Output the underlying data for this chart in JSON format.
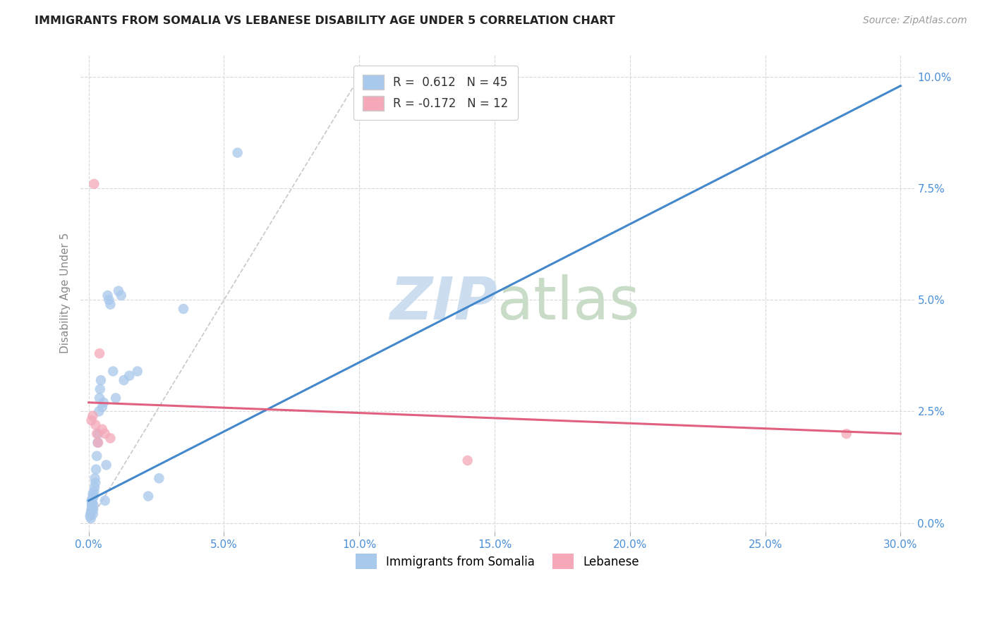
{
  "title": "IMMIGRANTS FROM SOMALIA VS LEBANESE DISABILITY AGE UNDER 5 CORRELATION CHART",
  "source": "Source: ZipAtlas.com",
  "xlabel_vals": [
    0.0,
    5.0,
    10.0,
    15.0,
    20.0,
    25.0,
    30.0
  ],
  "ylabel_vals": [
    0.0,
    2.5,
    5.0,
    7.5,
    10.0
  ],
  "ylabel": "Disability Age Under 5",
  "xlim": [
    -0.3,
    30.5
  ],
  "ylim": [
    -0.2,
    10.5
  ],
  "somalia_R": 0.612,
  "somalia_N": 45,
  "lebanese_R": -0.172,
  "lebanese_N": 12,
  "somalia_color": "#a8c8ec",
  "lebanese_color": "#f4a8b8",
  "somalia_line_color": "#4488cc",
  "lebanese_line_color": "#e06080",
  "diagonal_color": "#c8c8cc",
  "soma_x": [
    0.05,
    0.07,
    0.08,
    0.09,
    0.1,
    0.1,
    0.11,
    0.12,
    0.13,
    0.14,
    0.15,
    0.16,
    0.17,
    0.18,
    0.19,
    0.2,
    0.22,
    0.23,
    0.25,
    0.27,
    0.3,
    0.33,
    0.35,
    0.38,
    0.4,
    0.42,
    0.45,
    0.5,
    0.55,
    0.6,
    0.65,
    0.7,
    0.75,
    0.8,
    0.9,
    1.0,
    1.1,
    1.2,
    1.3,
    1.5,
    1.8,
    2.2,
    2.6,
    3.5,
    5.5
  ],
  "soma_y": [
    0.15,
    0.2,
    0.1,
    0.25,
    0.3,
    0.5,
    0.4,
    0.35,
    0.45,
    0.55,
    0.65,
    0.2,
    0.3,
    0.4,
    0.6,
    0.7,
    0.8,
    1.0,
    0.9,
    1.2,
    1.5,
    1.8,
    2.0,
    2.5,
    2.8,
    3.0,
    3.2,
    2.6,
    2.7,
    0.5,
    1.3,
    5.1,
    5.0,
    4.9,
    3.4,
    2.8,
    5.2,
    5.1,
    3.2,
    3.3,
    3.4,
    0.6,
    1.0,
    4.8,
    8.3
  ],
  "leb_x": [
    0.1,
    0.15,
    0.2,
    0.25,
    0.3,
    0.35,
    0.4,
    0.5,
    0.6,
    0.8,
    14.0,
    28.0
  ],
  "leb_y": [
    2.3,
    2.4,
    7.6,
    2.2,
    2.0,
    1.8,
    3.8,
    2.1,
    2.0,
    1.9,
    1.4,
    2.0
  ],
  "soma_line_x0": 0.0,
  "soma_line_x1": 30.0,
  "soma_line_y0": 0.5,
  "soma_line_y1": 9.8,
  "leb_line_x0": 0.0,
  "leb_line_x1": 30.0,
  "leb_line_y0": 2.7,
  "leb_line_y1": 2.0
}
